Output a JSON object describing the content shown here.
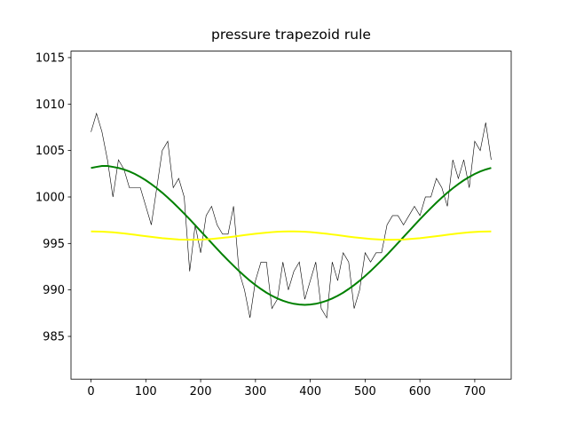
{
  "chart_data": {
    "type": "line",
    "title": "pressure trapezoid rule",
    "x": [
      0,
      10,
      20,
      30,
      40,
      50,
      60,
      70,
      80,
      90,
      100,
      110,
      120,
      130,
      140,
      150,
      160,
      170,
      180,
      190,
      200,
      210,
      220,
      230,
      240,
      250,
      260,
      270,
      280,
      290,
      300,
      310,
      320,
      330,
      340,
      350,
      360,
      370,
      380,
      390,
      400,
      410,
      420,
      430,
      440,
      450,
      460,
      470,
      480,
      490,
      500,
      510,
      520,
      530,
      540,
      550,
      560,
      570,
      580,
      590,
      600,
      610,
      620,
      630,
      640,
      650,
      660,
      670,
      680,
      690,
      700,
      710,
      720,
      730
    ],
    "series": [
      {
        "color": "#000000",
        "values": [
          1007,
          1009,
          1007,
          1004,
          1000,
          1004,
          1003,
          1001,
          1001,
          1001,
          999,
          997,
          1001,
          1005,
          1006,
          1001,
          1002,
          1000,
          992,
          997,
          994,
          998,
          999,
          997,
          996,
          996,
          999,
          992,
          990,
          987,
          991,
          993,
          993,
          988,
          989,
          993,
          990,
          992,
          993,
          989,
          991,
          993,
          988,
          987,
          993,
          991,
          994,
          993,
          988,
          990,
          994,
          993,
          994,
          994,
          997,
          998,
          998,
          997,
          998,
          999,
          998,
          1000,
          1000,
          1002,
          1001,
          999,
          1004,
          1002,
          1004,
          1001,
          1006,
          1005,
          1008,
          1004
        ]
      },
      {
        "color": "#008000",
        "values": [
          1003.13,
          1003.24,
          1003.34,
          1003.34,
          1003.24,
          1003.13,
          1002.96,
          1002.75,
          1002.48,
          1002.16,
          1001.8,
          1001.39,
          1000.94,
          1000.46,
          999.94,
          999.39,
          998.81,
          998.21,
          997.6,
          996.97,
          996.33,
          995.69,
          995.05,
          994.42,
          993.79,
          993.19,
          992.6,
          992.03,
          991.5,
          990.99,
          990.53,
          990.1,
          989.71,
          989.37,
          989.08,
          988.84,
          988.65,
          988.51,
          988.43,
          988.4,
          988.43,
          988.51,
          988.65,
          988.84,
          989.08,
          989.37,
          989.71,
          990.1,
          990.53,
          990.99,
          991.5,
          992.03,
          992.6,
          993.19,
          993.79,
          994.42,
          995.05,
          995.69,
          996.33,
          996.97,
          997.6,
          998.21,
          998.81,
          999.39,
          999.94,
          1000.46,
          1000.94,
          1001.39,
          1001.8,
          1002.16,
          1002.48,
          1002.75,
          1002.96,
          1003.13
        ]
      },
      {
        "color": "#ffff00",
        "values": [
          996.3,
          996.29,
          996.27,
          996.24,
          996.2,
          996.14,
          996.08,
          996.01,
          995.94,
          995.86,
          995.78,
          995.71,
          995.64,
          995.57,
          995.52,
          995.47,
          995.43,
          995.41,
          995.4,
          995.4,
          995.42,
          995.45,
          995.49,
          995.54,
          995.6,
          995.67,
          995.74,
          995.82,
          995.9,
          995.97,
          996.05,
          996.11,
          996.17,
          996.22,
          996.26,
          996.29,
          996.3,
          996.3,
          996.29,
          996.26,
          996.22,
          996.17,
          996.11,
          996.05,
          995.97,
          995.9,
          995.82,
          995.74,
          995.67,
          995.6,
          995.54,
          995.49,
          995.45,
          995.42,
          995.4,
          995.4,
          995.41,
          995.43,
          995.47,
          995.52,
          995.57,
          995.64,
          995.71,
          995.78,
          995.86,
          995.94,
          996.01,
          996.08,
          996.14,
          996.2,
          996.24,
          996.27,
          996.29,
          996.3
        ]
      }
    ],
    "xlim": [
      -36.5,
      766.5
    ],
    "ylim": [
      980.4,
      1015.7
    ],
    "xticks": [
      0,
      100,
      200,
      300,
      400,
      500,
      600,
      700
    ],
    "yticks": [
      985,
      990,
      995,
      1000,
      1005,
      1010,
      1015
    ]
  }
}
